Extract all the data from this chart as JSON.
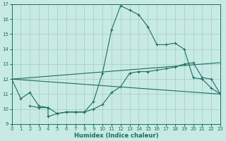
{
  "xlabel": "Humidex (Indice chaleur)",
  "xlim": [
    0,
    23
  ],
  "ylim": [
    9,
    17
  ],
  "yticks": [
    9,
    10,
    11,
    12,
    13,
    14,
    15,
    16,
    17
  ],
  "xticks": [
    0,
    1,
    2,
    3,
    4,
    5,
    6,
    7,
    8,
    9,
    10,
    11,
    12,
    13,
    14,
    15,
    16,
    17,
    18,
    19,
    20,
    21,
    22,
    23
  ],
  "bg_color": "#c8eae4",
  "line_color": "#1a6e62",
  "grid_color": "#a0ccc4",
  "line1_x": [
    0,
    1,
    2,
    3,
    4,
    4,
    5,
    6,
    7,
    8,
    9,
    10,
    11,
    12,
    13,
    14,
    15,
    16,
    17,
    18,
    19,
    20,
    21,
    22,
    23
  ],
  "line1_y": [
    12.0,
    10.7,
    11.1,
    10.2,
    10.1,
    9.5,
    9.7,
    9.8,
    9.8,
    9.8,
    10.5,
    12.4,
    15.3,
    16.9,
    16.6,
    16.3,
    15.5,
    14.3,
    14.3,
    14.4,
    14.0,
    12.1,
    12.0,
    11.4,
    11.0
  ],
  "line1_markers": [
    0,
    1,
    2,
    3,
    4,
    5,
    6,
    7,
    8,
    9,
    10,
    11,
    12,
    13,
    14,
    15,
    16,
    17,
    18,
    19,
    20,
    21,
    22,
    23
  ],
  "line2_x": [
    2,
    3,
    4,
    5,
    6,
    7,
    8,
    9,
    10,
    11,
    12,
    13,
    14,
    15,
    16,
    17,
    18,
    19,
    20,
    21,
    22,
    23
  ],
  "line2_y": [
    10.2,
    10.1,
    10.1,
    9.7,
    9.8,
    9.8,
    9.8,
    10.0,
    10.3,
    11.1,
    11.5,
    12.4,
    12.5,
    12.5,
    12.6,
    12.7,
    12.8,
    13.0,
    13.1,
    12.1,
    12.0,
    11.0
  ],
  "line3_x": [
    0,
    23
  ],
  "line3_y": [
    12.0,
    11.0
  ],
  "line4_x": [
    0,
    23
  ],
  "line4_y": [
    12.0,
    13.1
  ]
}
